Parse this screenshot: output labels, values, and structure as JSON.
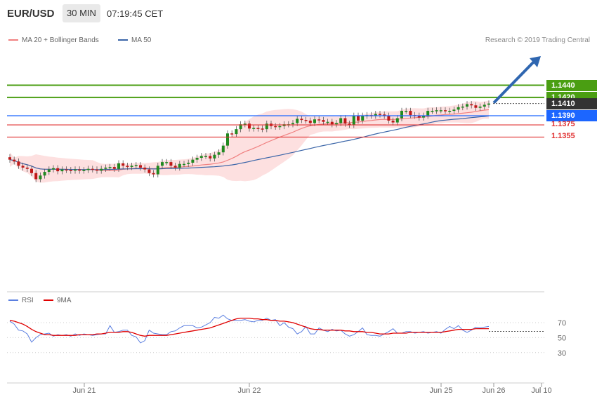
{
  "header": {
    "symbol": "EUR/USD",
    "timeframe": "30 MIN",
    "time": "07:19:45 CET"
  },
  "legend": {
    "ma20": "MA 20 + Bollinger Bands",
    "ma50": "MA 50",
    "copyright": "Research © 2019 Trading Central"
  },
  "rsi_legend": {
    "rsi": "RSI",
    "ma": "9MA"
  },
  "colors": {
    "green": "#4a9e12",
    "blue": "#1c66ff",
    "red": "#e03030",
    "dark": "#333333",
    "ma50": "#3a65a8",
    "band": "#fde0e0",
    "arrow": "#2f66b0"
  },
  "levels": [
    {
      "value": "1.1440",
      "color": "green",
      "style": "badge"
    },
    {
      "value": "1.1420",
      "color": "green",
      "style": "badge"
    },
    {
      "value": "1.1410",
      "color": "dark",
      "style": "badge"
    },
    {
      "value": "1.1390",
      "color": "blue",
      "style": "badge"
    },
    {
      "value": "1.1375",
      "color": "red",
      "style": "plain"
    },
    {
      "value": "1.1355",
      "color": "red",
      "style": "plain"
    }
  ],
  "chart_data": [
    {
      "type": "candlestick",
      "title": "EUR/USD 30 MIN",
      "x_ticks": [
        "Jun 21",
        "Jun 22",
        "Jun 25",
        "Jun 26",
        "Jul 10"
      ],
      "ylim": [
        1.1268,
        1.145
      ],
      "series": [
        {
          "name": "MA 20 + Bollinger Bands",
          "color": "#f08080"
        },
        {
          "name": "MA 50",
          "color": "#3a65a8"
        }
      ],
      "levels": [
        1.144,
        1.142,
        1.141,
        1.139,
        1.1375,
        1.1355
      ],
      "close": [
        1.1318,
        1.1315,
        1.1308,
        1.1305,
        1.1303,
        1.1296,
        1.1286,
        1.1292,
        1.1298,
        1.1302,
        1.1304,
        1.1299,
        1.1302,
        1.1301,
        1.13,
        1.1302,
        1.13,
        1.1301,
        1.1303,
        1.1302,
        1.13,
        1.1303,
        1.1305,
        1.1306,
        1.1303,
        1.1312,
        1.1308,
        1.1306,
        1.1308,
        1.1309,
        1.1305,
        1.1302,
        1.1296,
        1.1294,
        1.1308,
        1.1314,
        1.1314,
        1.1308,
        1.1305,
        1.1311,
        1.1311,
        1.1313,
        1.1318,
        1.1321,
        1.1324,
        1.1324,
        1.132,
        1.1326,
        1.133,
        1.1341,
        1.1361,
        1.136,
        1.1368,
        1.1376,
        1.1377,
        1.1369,
        1.137,
        1.1369,
        1.1368,
        1.1377,
        1.1373,
        1.1372,
        1.1373,
        1.1376,
        1.1376,
        1.1378,
        1.1385,
        1.1383,
        1.1382,
        1.1378,
        1.1384,
        1.1383,
        1.138,
        1.138,
        1.1376,
        1.1378,
        1.1386,
        1.1377,
        1.1375,
        1.139,
        1.1382,
        1.139,
        1.1391,
        1.139,
        1.1393,
        1.1392,
        1.139,
        1.1382,
        1.1379,
        1.1386,
        1.1398,
        1.1398,
        1.1391,
        1.139,
        1.1387,
        1.139,
        1.1398,
        1.1398,
        1.1399,
        1.1399,
        1.1398,
        1.1398,
        1.14,
        1.1404,
        1.1405,
        1.1409,
        1.1407,
        1.1403,
        1.1405,
        1.1408,
        1.141
      ]
    },
    {
      "type": "line",
      "title": "RSI",
      "x_ticks": [
        "Jun 21",
        "Jun 22",
        "Jun 25",
        "Jun 26",
        "Jul 10"
      ],
      "ylim": [
        20,
        80
      ],
      "yticks": [
        30,
        50,
        70
      ],
      "series": [
        {
          "name": "RSI",
          "color": "#5b7fe0",
          "values": [
            72,
            68,
            60,
            59,
            55,
            44,
            50,
            54,
            55,
            56,
            52,
            54,
            53,
            54,
            52,
            55,
            53,
            55,
            54,
            53,
            54,
            55,
            55,
            66,
            57,
            58,
            60,
            60,
            53,
            51,
            43,
            46,
            60,
            56,
            55,
            54,
            54,
            58,
            59,
            63,
            66,
            66,
            66,
            63,
            64,
            67,
            70,
            77,
            76,
            80,
            75,
            73,
            73,
            73,
            74,
            72,
            71,
            73,
            73,
            76,
            73,
            74,
            66,
            70,
            64,
            62,
            55,
            58,
            65,
            55,
            55,
            63,
            60,
            58,
            61,
            59,
            60,
            55,
            52,
            54,
            58,
            63,
            54,
            53,
            53,
            52,
            55,
            58,
            62,
            56,
            56,
            58,
            58,
            56,
            57,
            58,
            56,
            57,
            58,
            56,
            61,
            65,
            62,
            66,
            60,
            57,
            60,
            64,
            63,
            64,
            65
          ]
        },
        {
          "name": "9MA",
          "color": "#e00000",
          "values": [
            73,
            72,
            70,
            68,
            65,
            61,
            58,
            56,
            54,
            54,
            53,
            53,
            53,
            53,
            53,
            53,
            54,
            54,
            54,
            54,
            55,
            55,
            56,
            57,
            57,
            57,
            58,
            58,
            57,
            55,
            53,
            52,
            53,
            53,
            53,
            53,
            53,
            54,
            55,
            56,
            57,
            58,
            59,
            60,
            61,
            62,
            63,
            65,
            67,
            69,
            71,
            73,
            75,
            76,
            76,
            76,
            75,
            75,
            74,
            74,
            73,
            73,
            72,
            72,
            71,
            70,
            68,
            66,
            64,
            62,
            61,
            61,
            60,
            60,
            60,
            60,
            60,
            59,
            59,
            58,
            58,
            58,
            57,
            57,
            56,
            55,
            55,
            55,
            56,
            56,
            56,
            56,
            57,
            57,
            57,
            57,
            57,
            57,
            57,
            57,
            58,
            59,
            60,
            61,
            61,
            61,
            61,
            62,
            62,
            62,
            62
          ]
        }
      ]
    }
  ]
}
